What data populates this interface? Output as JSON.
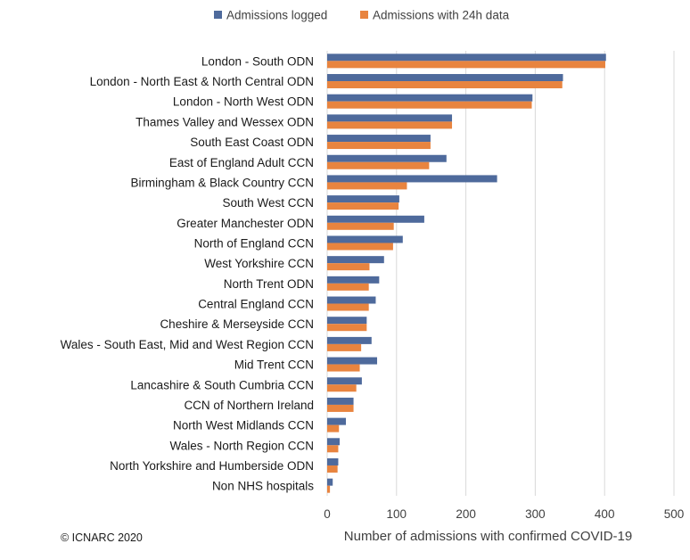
{
  "chart_data": {
    "type": "bar",
    "orientation": "horizontal",
    "title": "",
    "xlabel": "Number of admissions with confirmed COVID-19",
    "ylabel": "",
    "xlim": [
      0,
      500
    ],
    "xticks": [
      0,
      100,
      200,
      300,
      400,
      500
    ],
    "grid": true,
    "legend_position": "top",
    "categories": [
      "London - South ODN",
      "London - North East & North Central ODN",
      "London - North West ODN",
      "Thames Valley and Wessex ODN",
      "South East Coast ODN",
      "East of England Adult CCN",
      "Birmingham & Black Country CCN",
      "South West CCN",
      "Greater Manchester ODN",
      "North of England CCN",
      "West Yorkshire CCN",
      "North Trent ODN",
      "Central England CCN",
      "Cheshire & Merseyside CCN",
      "Wales - South East, Mid and West Region CCN",
      "Mid Trent CCN",
      "Lancashire & South Cumbria CCN",
      "CCN of Northern Ireland",
      "North West Midlands CCN",
      "Wales - North Region CCN",
      "North Yorkshire and Humberside ODN",
      "Non NHS hospitals"
    ],
    "series": [
      {
        "name": "Admissions logged",
        "color": "#4e6a9c",
        "values": [
          402,
          340,
          296,
          180,
          149,
          172,
          245,
          104,
          140,
          109,
          82,
          75,
          70,
          57,
          64,
          72,
          50,
          38,
          27,
          18,
          16,
          8
        ]
      },
      {
        "name": "Admissions with 24h data",
        "color": "#e8843f",
        "values": [
          401,
          339,
          295,
          180,
          149,
          147,
          115,
          103,
          96,
          95,
          61,
          60,
          60,
          57,
          49,
          47,
          42,
          38,
          17,
          16,
          15,
          4
        ]
      }
    ]
  },
  "footer": {
    "copyright": "© ICNARC 2020"
  }
}
